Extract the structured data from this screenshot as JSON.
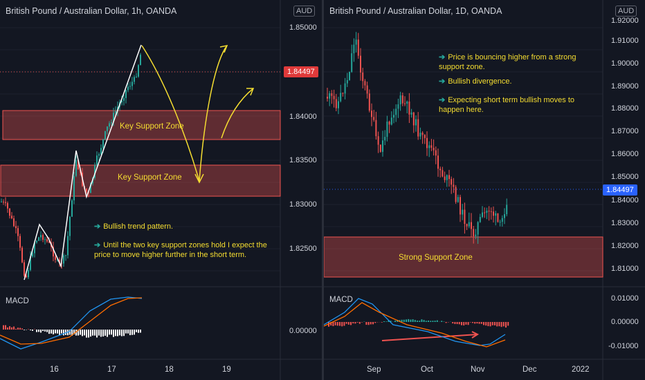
{
  "left": {
    "title": "British Pound / Australian Dollar, 1h, OANDA",
    "currency": "AUD",
    "y_ticks": [
      "1.85000",
      "1.84000",
      "1.83500",
      "1.83000",
      "1.82500",
      "0.00000"
    ],
    "price_tag": "1.84497",
    "x_ticks": [
      "16",
      "17",
      "18",
      "19"
    ],
    "macd_label": "MACD",
    "zone1_label": "Key Support Zone",
    "zone2_label": "Key Support Zone",
    "notes": [
      "Bullish trend pattern.",
      "Until the two key support zones hold I expect the price to move higher further in the short term."
    ],
    "colors": {
      "up": "#26a69a",
      "down": "#ef5350",
      "zone": "#ef5350",
      "arrow": "#f5dd31"
    }
  },
  "right": {
    "title": "British Pound / Australian Dollar, 1D, OANDA",
    "currency": "AUD",
    "y_ticks": [
      "1.92000",
      "1.91000",
      "1.90000",
      "1.89000",
      "1.88000",
      "1.87000",
      "1.86000",
      "1.85000",
      "1.84000",
      "1.83000",
      "1.82000",
      "1.81000",
      "0.01000",
      "0.00000",
      "-0.01000"
    ],
    "price_tag": "1.84497",
    "x_ticks": [
      "Sep",
      "Oct",
      "Nov",
      "Dec",
      "2022"
    ],
    "macd_label": "MACD",
    "zone_label": "Strong Support Zone",
    "notes": [
      "Price is bouncing higher from a strong support zone.",
      "Bullish divergence.",
      "Expecting short term bullish moves to happen here."
    ]
  }
}
